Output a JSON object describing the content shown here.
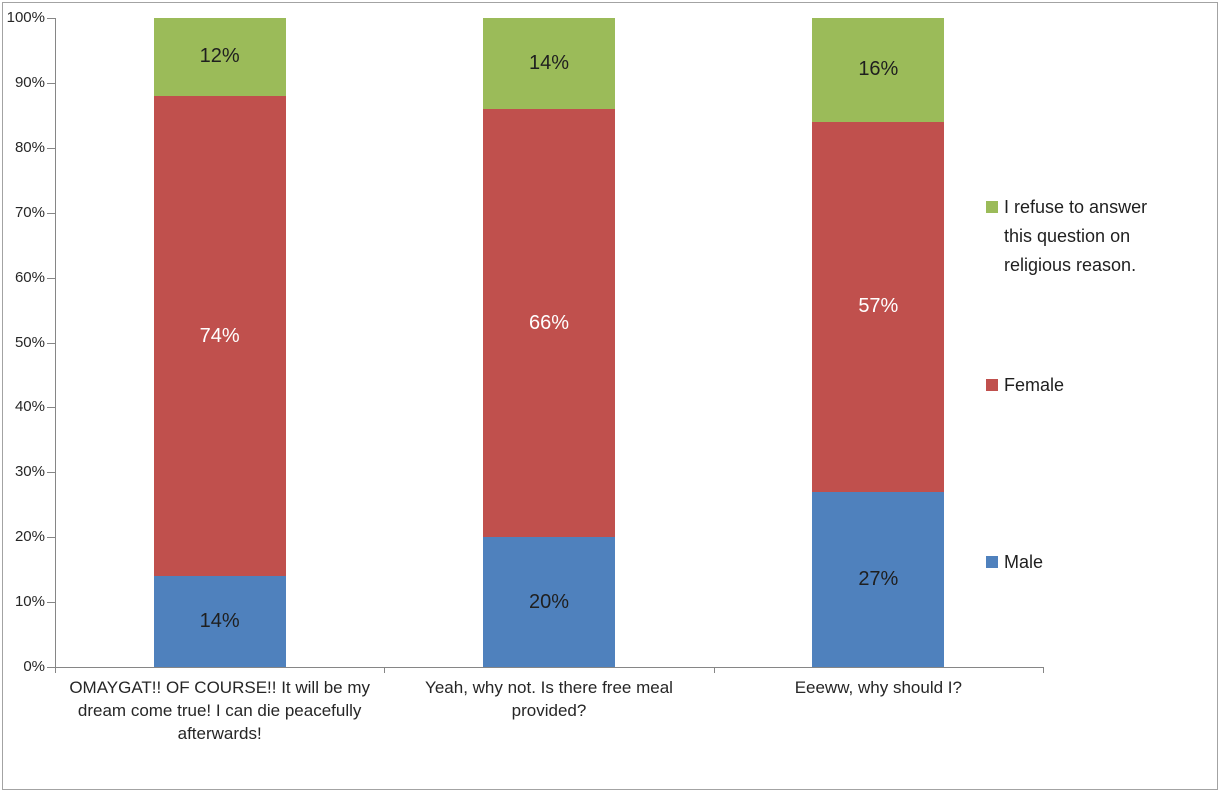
{
  "chart_data": {
    "type": "bar",
    "stacking": "percent",
    "title": "",
    "xlabel": "",
    "ylabel": "",
    "grid": false,
    "legend_position": "right",
    "value_suffix": "%",
    "categories": [
      {
        "label": "OMAYGAT!! OF COURSE!! It will be my dream come true! I can die peacefully afterwards!",
        "lines": [
          "OMAYGAT!! OF COURSE!! It will be my",
          "dream come true! I can die peacefully",
          "afterwards!"
        ]
      },
      {
        "label": "Yeah, why not. Is there free meal provided?",
        "lines": [
          "Yeah, why not. Is there free meal",
          "provided?"
        ]
      },
      {
        "label": "Eeeww, why should I?",
        "lines": [
          "Eeeww, why should I?"
        ]
      }
    ],
    "series": [
      {
        "key": "male",
        "name": "Male",
        "values": [
          14,
          20,
          27
        ],
        "color": "#4F81BD",
        "label_color": "#1F1F1F"
      },
      {
        "key": "female",
        "name": "Female",
        "values": [
          74,
          66,
          57
        ],
        "color": "#C0504D",
        "label_color": "#FFFFFF"
      },
      {
        "key": "refuse",
        "name": "I refuse to answer this question on religious reason.",
        "values": [
          12,
          14,
          16
        ],
        "color": "#9BBB59",
        "label_color": "#1F1F1F",
        "legend_lines": [
          "I refuse to answer",
          "this question on",
          "religious reason."
        ]
      }
    ],
    "y_axis": {
      "min": 0,
      "max": 100,
      "ticks": [
        "0%",
        "10%",
        "20%",
        "30%",
        "40%",
        "50%",
        "60%",
        "70%",
        "80%",
        "90%",
        "100%"
      ]
    },
    "colors": {
      "axis": "#868686",
      "text": "#262626",
      "border": "#A3A3A3",
      "background": "#FFFFFF"
    }
  }
}
